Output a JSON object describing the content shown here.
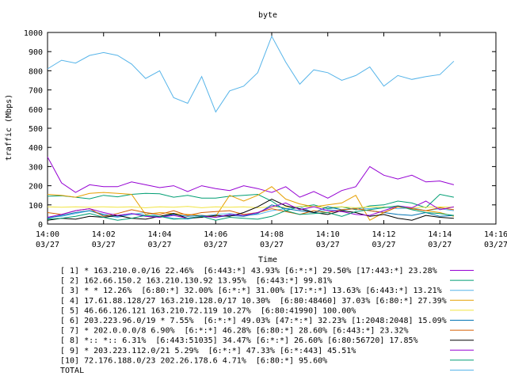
{
  "chart_data": {
    "type": "line",
    "title": "byte",
    "xlabel": "Time",
    "ylabel": "traffic (Mbps)",
    "ylim": [
      0,
      1000
    ],
    "xlim": [
      "14:00",
      "14:16"
    ],
    "y_ticks": [
      "0",
      "100",
      "200",
      "300",
      "400",
      "500",
      "600",
      "700",
      "800",
      "900",
      "1000"
    ],
    "x_ticks": [
      {
        "time": "14:00",
        "date": "03/27"
      },
      {
        "time": "14:02",
        "date": "03/27"
      },
      {
        "time": "14:04",
        "date": "03/27"
      },
      {
        "time": "14:06",
        "date": "03/27"
      },
      {
        "time": "14:08",
        "date": "03/27"
      },
      {
        "time": "14:10",
        "date": "03/27"
      },
      {
        "time": "14:12",
        "date": "03/27"
      },
      {
        "time": "14:14",
        "date": "03/27"
      },
      {
        "time": "14:16",
        "date": "03/27"
      }
    ],
    "grid": false,
    "legend_placement": "bottom",
    "x": [
      "14:00:00",
      "14:00:30",
      "14:01:00",
      "14:01:30",
      "14:02:00",
      "14:02:30",
      "14:03:00",
      "14:03:30",
      "14:04:00",
      "14:04:30",
      "14:05:00",
      "14:05:30",
      "14:06:00",
      "14:06:30",
      "14:07:00",
      "14:07:30",
      "14:08:00",
      "14:08:30",
      "14:09:00",
      "14:09:30",
      "14:10:00",
      "14:10:30",
      "14:11:00",
      "14:11:30",
      "14:12:00",
      "14:12:30",
      "14:13:00",
      "14:13:30",
      "14:14:00",
      "14:14:30"
    ],
    "series": [
      {
        "name": "[ 1] * 163.210.0.0/16 22.46%  [6:443:*] 43.93% [6:*:*] 29.50% [17:443:*] 23.28%",
        "color": "#9500d3",
        "values": [
          350,
          215,
          165,
          205,
          195,
          195,
          220,
          205,
          190,
          200,
          170,
          200,
          185,
          175,
          200,
          185,
          165,
          195,
          140,
          170,
          135,
          175,
          195,
          300,
          255,
          235,
          255,
          220,
          225,
          205
        ]
      },
      {
        "name": "[ 2] 162.66.150.2 163.210.130.92 13.95%  [6:443:*] 99.81%",
        "color": "#009e73",
        "values": [
          145,
          148,
          140,
          132,
          150,
          142,
          155,
          160,
          158,
          140,
          150,
          135,
          135,
          145,
          150,
          155,
          120,
          70,
          90,
          100,
          80,
          90,
          75,
          95,
          100,
          120,
          110,
          85,
          155,
          140
        ]
      },
      {
        "name": "[ 3] * * 12.26%  [6:80:*] 32.00% [6:*:*] 31.00% [17:*:*] 13.63% [6:443:*] 13.21%",
        "color": "#56b4e9",
        "values": [
          35,
          40,
          55,
          70,
          45,
          35,
          50,
          60,
          40,
          30,
          25,
          40,
          50,
          55,
          45,
          50,
          70,
          80,
          90,
          60,
          75,
          70,
          85,
          80,
          90,
          80,
          85,
          70,
          80,
          70
        ]
      },
      {
        "name": "[ 4] 17.61.88.128/27 163.210.128.0/17 10.30%  [6:80:48460] 37.03% [6:80:*] 27.39%",
        "color": "#e69f00",
        "values": [
          155,
          150,
          140,
          160,
          165,
          160,
          155,
          50,
          60,
          55,
          50,
          45,
          40,
          150,
          120,
          150,
          195,
          130,
          105,
          90,
          100,
          110,
          150,
          20,
          60,
          90,
          80,
          70,
          60,
          40
        ]
      },
      {
        "name": "[ 5] 46.66.126.121 163.210.72.119 10.27%  [6:80:41990] 100.00%",
        "color": "#f0e442",
        "values": [
          90,
          88,
          90,
          88,
          90,
          88,
          90,
          85,
          90,
          88,
          92,
          85,
          90,
          88,
          90,
          85,
          90,
          88,
          92,
          90,
          88,
          90,
          85,
          90,
          88,
          90,
          85,
          88,
          90,
          88
        ]
      },
      {
        "name": "[ 6] 203.223.96.0/19 * 7.55%  [6:*:*] 49.03% [47:*:*] 32.23% [1:2048:2048] 15.09%",
        "color": "#0072b2",
        "values": [
          30,
          45,
          60,
          70,
          50,
          40,
          55,
          45,
          35,
          50,
          40,
          45,
          35,
          45,
          40,
          55,
          100,
          80,
          70,
          60,
          90,
          75,
          80,
          70,
          60,
          50,
          45,
          60,
          40,
          45
        ]
      },
      {
        "name": "[ 7] * 202.0.0.0/8 6.90%  [6:*:*] 46.28% [6:80:*] 28.60% [6:443:*] 23.32%",
        "color": "#d55e00",
        "values": [
          60,
          50,
          70,
          80,
          40,
          55,
          75,
          60,
          50,
          70,
          45,
          60,
          65,
          70,
          50,
          60,
          80,
          65,
          50,
          70,
          60,
          75,
          80,
          70,
          60,
          90,
          80,
          70,
          85,
          75
        ]
      },
      {
        "name": "[ 8] *:: *:: 6.31%  [6:443:51035] 34.47% [6:*:*] 26.60% [6:80:56720] 17.85%",
        "color": "#000000",
        "values": [
          20,
          30,
          25,
          40,
          35,
          45,
          30,
          25,
          40,
          55,
          30,
          35,
          45,
          40,
          60,
          90,
          130,
          95,
          80,
          60,
          50,
          70,
          60,
          40,
          50,
          30,
          20,
          45,
          35,
          30
        ]
      },
      {
        "name": "[ 9] * 203.223.112.0/21 5.29%  [6:*:*] 47.33% [6:*:443] 45.51%",
        "color": "#9500d3",
        "values": [
          35,
          50,
          70,
          80,
          60,
          45,
          55,
          40,
          35,
          45,
          30,
          40,
          35,
          50,
          45,
          60,
          90,
          110,
          75,
          90,
          70,
          65,
          50,
          45,
          70,
          95,
          85,
          120,
          75,
          90
        ]
      },
      {
        "name": "[10] 72.176.188.0/23 202.26.178.6 4.71%  [6:80:*] 95.60%",
        "color": "#009e73",
        "values": [
          25,
          30,
          40,
          55,
          35,
          20,
          30,
          45,
          40,
          25,
          30,
          40,
          20,
          35,
          30,
          25,
          40,
          70,
          50,
          55,
          60,
          40,
          65,
          75,
          85,
          95,
          75,
          60,
          55,
          45
        ]
      },
      {
        "name": "TOTAL",
        "color": "#56b4e9",
        "values": [
          810,
          855,
          840,
          880,
          895,
          880,
          835,
          760,
          800,
          660,
          630,
          770,
          585,
          695,
          720,
          790,
          980,
          845,
          730,
          805,
          790,
          750,
          775,
          820,
          720,
          775,
          755,
          770,
          780,
          850
        ]
      }
    ]
  }
}
